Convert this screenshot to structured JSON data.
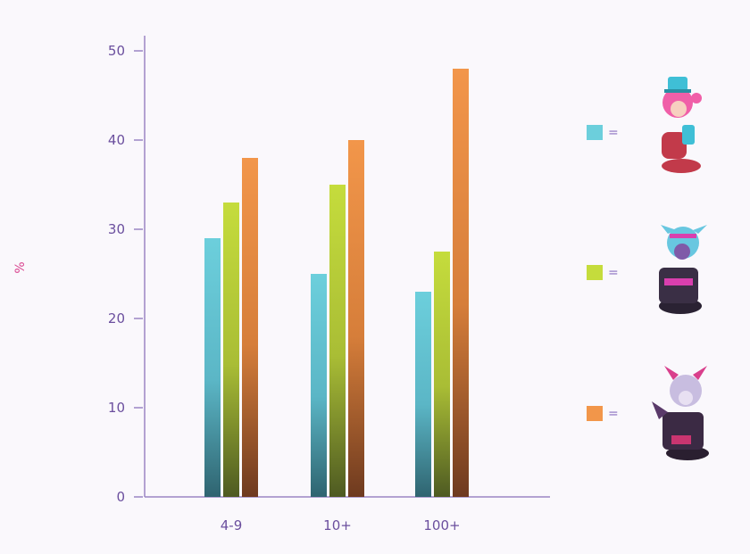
{
  "chart_data": {
    "type": "bar",
    "ylabel": "%",
    "ylim": [
      0,
      50
    ],
    "yticks": [
      0,
      10,
      20,
      30,
      40,
      50
    ],
    "categories": [
      "4-9",
      "10+",
      "100+"
    ],
    "series": [
      {
        "color": "#6ccfdc",
        "values": [
          29,
          25,
          23
        ]
      },
      {
        "color": "#c5dc3c",
        "values": [
          33,
          35,
          27.5
        ]
      },
      {
        "color": "#f2964a",
        "values": [
          38,
          40,
          48
        ]
      }
    ],
    "legend": {
      "placement": "right",
      "entries": [
        {
          "swatch": "#6ccfdc",
          "text": "=",
          "icon": "champion-portrait-pink-hair-icon"
        },
        {
          "swatch": "#c5dc3c",
          "text": "=",
          "icon": "champion-portrait-cyan-hair-icon"
        },
        {
          "swatch": "#f2964a",
          "text": "=",
          "icon": "champion-portrait-horned-icon"
        }
      ]
    },
    "grid": false
  }
}
